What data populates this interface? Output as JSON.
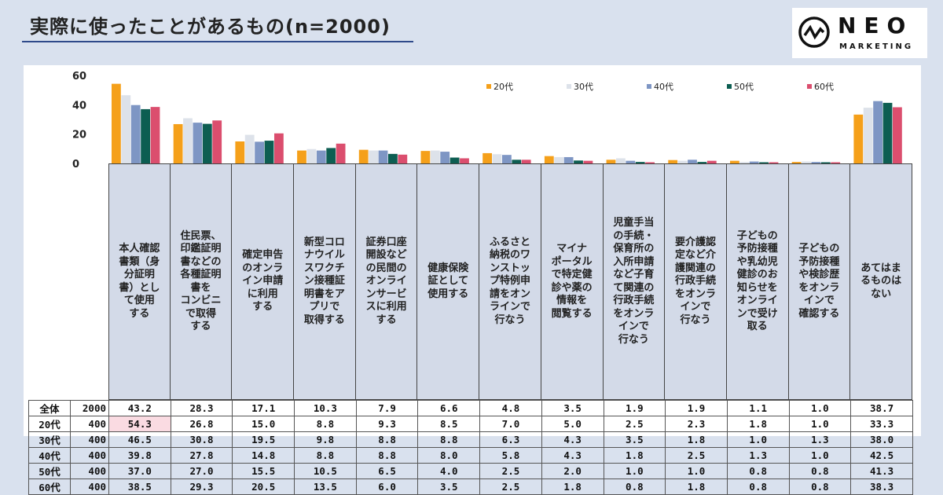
{
  "title": "実際に使ったことがあるもの(n=2000)",
  "logo": {
    "name": "NEO",
    "sub": "MARKETING"
  },
  "chart_data": {
    "type": "bar",
    "ylim": [
      0,
      60
    ],
    "yticks": [
      0,
      20,
      40,
      60
    ],
    "categories": [
      "本人確認\n書類（身\n分証明\n書）とし\nて使用\nする",
      "住民票、\n印鑑証明\n書などの\n各種証明\n書を\nコンビニ\nで取得\nする",
      "確定申告\nのオンラ\nイン申請\nに利用\nする",
      "新型コロ\nナウイル\nスワクチ\nン接種証\n明書をア\nプリで\n取得する",
      "証券口座\n開設など\nの民間の\nオンライ\nンサービ\nスに利用\nする",
      "健康保険\n証として\n使用する",
      "ふるさと\n納税のワ\nンストッ\nプ特例申\n請をオン\nラインで\n行なう",
      "マイナ\nポータル\nで特定健\n診や薬の\n情報を\n閲覧する",
      "児童手当\nの手続・\n保育所の\n入所申請\nなど子育\nて関連の\n行政手続\nをオンラ\nインで\n行なう",
      "要介護認\n定など介\n護関連の\n行政手続\nをオンラ\nインで\n行なう",
      "子どもの\n予防接種\nや乳幼児\n健診のお\n知らせを\nオンライ\nンで受け\n取る",
      "子どもの\n予防接種\nや検診歴\nをオンラ\nインで\n確認する",
      "あてはま\nるものは\nない"
    ],
    "series": [
      {
        "name": "20代",
        "color": "#f5a01a",
        "values": [
          54.3,
          26.8,
          15.0,
          8.8,
          9.3,
          8.5,
          7.0,
          5.0,
          2.5,
          2.3,
          1.8,
          1.0,
          33.3
        ]
      },
      {
        "name": "30代",
        "color": "#dde2ea",
        "values": [
          46.5,
          30.8,
          19.5,
          9.8,
          8.8,
          8.8,
          6.3,
          4.3,
          3.5,
          1.8,
          1.0,
          1.3,
          38.0
        ]
      },
      {
        "name": "40代",
        "color": "#7e96c4",
        "values": [
          39.8,
          27.8,
          14.8,
          8.8,
          8.8,
          8.0,
          5.8,
          4.3,
          1.8,
          2.5,
          1.3,
          1.0,
          42.5
        ]
      },
      {
        "name": "50代",
        "color": "#0d5e52",
        "values": [
          37.0,
          27.0,
          15.5,
          10.5,
          6.5,
          4.0,
          2.5,
          2.0,
          1.0,
          1.0,
          0.8,
          0.8,
          41.3
        ]
      },
      {
        "name": "60代",
        "color": "#db4e6e",
        "values": [
          38.5,
          29.3,
          20.5,
          13.5,
          6.0,
          3.5,
          2.5,
          1.8,
          0.8,
          1.8,
          0.8,
          0.8,
          38.3
        ]
      }
    ],
    "table": [
      {
        "label": "全体",
        "n": "2000",
        "values": [
          "43.2",
          "28.3",
          "17.1",
          "10.3",
          "7.9",
          "6.6",
          "4.8",
          "3.5",
          "1.9",
          "1.9",
          "1.1",
          "1.0",
          "38.7"
        ]
      },
      {
        "label": "20代",
        "n": "400",
        "values": [
          "54.3",
          "26.8",
          "15.0",
          "8.8",
          "9.3",
          "8.5",
          "7.0",
          "5.0",
          "2.5",
          "2.3",
          "1.8",
          "1.0",
          "33.3"
        ]
      },
      {
        "label": "30代",
        "n": "400",
        "values": [
          "46.5",
          "30.8",
          "19.5",
          "9.8",
          "8.8",
          "8.8",
          "6.3",
          "4.3",
          "3.5",
          "1.8",
          "1.0",
          "1.3",
          "38.0"
        ]
      },
      {
        "label": "40代",
        "n": "400",
        "values": [
          "39.8",
          "27.8",
          "14.8",
          "8.8",
          "8.8",
          "8.0",
          "5.8",
          "4.3",
          "1.8",
          "2.5",
          "1.3",
          "1.0",
          "42.5"
        ]
      },
      {
        "label": "50代",
        "n": "400",
        "values": [
          "37.0",
          "27.0",
          "15.5",
          "10.5",
          "6.5",
          "4.0",
          "2.5",
          "2.0",
          "1.0",
          "1.0",
          "0.8",
          "0.8",
          "41.3"
        ]
      },
      {
        "label": "60代",
        "n": "400",
        "values": [
          "38.5",
          "29.3",
          "20.5",
          "13.5",
          "6.0",
          "3.5",
          "2.5",
          "1.8",
          "0.8",
          "1.8",
          "0.8",
          "0.8",
          "38.3"
        ]
      }
    ],
    "highlight": {
      "row": 1,
      "col": 0,
      "color": "#fadbe2"
    },
    "grid": false,
    "legend_position": "top-right"
  }
}
